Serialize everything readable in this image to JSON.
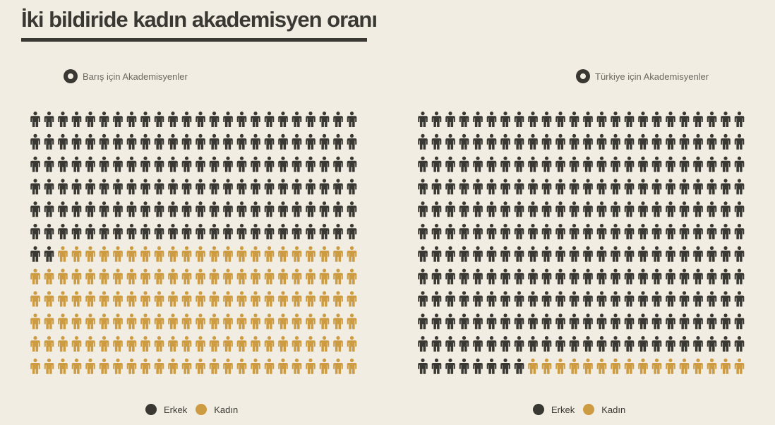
{
  "title": "İki bildiride kadın akademisyen oranı",
  "colors": {
    "erkek": "#3a3833",
    "kadin": "#cc9b42",
    "background": "#f2ede2"
  },
  "legend": {
    "erkek_label": "Erkek",
    "kadin_label": "Kadın"
  },
  "chart_data": [
    {
      "type": "waffle",
      "title": "Barış için Akademisyenler",
      "rows": 12,
      "columns": 24,
      "total_icons": 288,
      "series": [
        {
          "name": "Erkek",
          "count": 146
        },
        {
          "name": "Kadın",
          "count": 142
        }
      ]
    },
    {
      "type": "waffle",
      "title": "Türkiye için Akademisyenler",
      "rows": 12,
      "columns": 24,
      "total_icons": 288,
      "series": [
        {
          "name": "Erkek",
          "count": 272
        },
        {
          "name": "Kadın",
          "count": 16
        }
      ]
    }
  ]
}
